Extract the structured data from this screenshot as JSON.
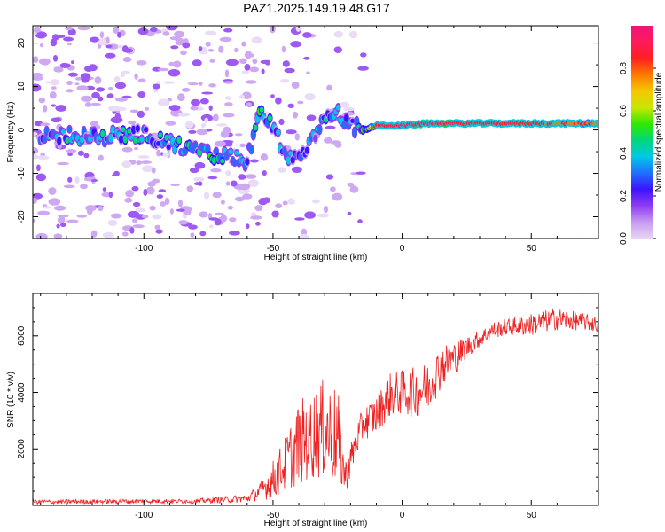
{
  "figure": {
    "title": "PAZ1.2025.149.19.48.G17",
    "colorbar_label": "Normalized spectral amplitude",
    "colorbar_ticks": [
      "0.0",
      "0.2",
      "0.4",
      "0.6",
      "0.8"
    ],
    "colorbar_colors": [
      "#e6d6f5",
      "#c79af0",
      "#8e3cf2",
      "#3c14ff",
      "#1e70ff",
      "#00c8e6",
      "#00d87a",
      "#30e800",
      "#c8e600",
      "#f5c800",
      "#ff7a00",
      "#ff2020",
      "#ff1a5a",
      "#f0147a"
    ]
  },
  "chart_data": [
    {
      "type": "heatmap",
      "xlabel": "Height of straight line (km)",
      "ylabel": "Frequency (Hz)",
      "xlim": [
        -143,
        76
      ],
      "ylim": [
        -25,
        24
      ],
      "x_ticks": [
        -100,
        -50,
        0,
        50
      ],
      "y_ticks": [
        -20,
        -10,
        0,
        10,
        20
      ],
      "colorbar_range": [
        0,
        1
      ],
      "ridge": {
        "x": [
          -140,
          -130,
          -120,
          -110,
          -100,
          -90,
          -80,
          -70,
          -60,
          -55,
          -50,
          -45,
          -40,
          -35,
          -30,
          -25,
          -20,
          -15,
          -10,
          0,
          10,
          20,
          30,
          40,
          50,
          60,
          70,
          76
        ],
        "frequency": [
          -2,
          -1,
          -2,
          -1,
          -1,
          -3,
          -5,
          -6,
          -7,
          4,
          1,
          -6,
          -7,
          -3,
          3,
          4,
          1,
          0,
          1,
          1,
          1.5,
          1.5,
          1.5,
          1.5,
          1.5,
          1.5,
          1.5,
          1.5
        ],
        "amplitude": [
          0.3,
          0.35,
          0.3,
          0.35,
          0.35,
          0.35,
          0.4,
          0.4,
          0.35,
          0.4,
          0.35,
          0.3,
          0.35,
          0.3,
          0.35,
          0.3,
          0.3,
          0.4,
          0.85,
          0.9,
          0.95,
          0.9,
          0.85,
          0.85,
          0.85,
          0.8,
          0.8,
          0.8
        ]
      }
    },
    {
      "type": "line",
      "xlabel": "Height of straight line (km)",
      "ylabel": "SNR (10 * v/v)",
      "xlim": [
        -143,
        76
      ],
      "ylim": [
        0,
        7500
      ],
      "x_ticks": [
        -100,
        -50,
        0,
        50
      ],
      "y_ticks": [
        2000,
        4000,
        6000
      ],
      "color": "#ee2020",
      "series": [
        {
          "x": [
            -143,
            -120,
            -100,
            -80,
            -60,
            -55,
            -50,
            -45,
            -40,
            -35,
            -30,
            -25,
            -22,
            -18,
            -15,
            -10,
            -5,
            0,
            5,
            10,
            15,
            20,
            25,
            30,
            35,
            40,
            50,
            60,
            70,
            76
          ],
          "mean": [
            120,
            140,
            150,
            150,
            250,
            500,
            900,
            1500,
            2200,
            2500,
            2700,
            2400,
            1000,
            2200,
            2900,
            3200,
            3900,
            4000,
            4000,
            4200,
            4900,
            5200,
            5600,
            5900,
            6200,
            6300,
            6400,
            6600,
            6500,
            6400
          ],
          "noise": [
            80,
            80,
            80,
            80,
            150,
            300,
            700,
            1000,
            1500,
            1600,
            1800,
            1800,
            600,
            600,
            600,
            700,
            800,
            800,
            900,
            900,
            800,
            600,
            400,
            300,
            300,
            300,
            400,
            400,
            300,
            300
          ]
        }
      ]
    }
  ]
}
